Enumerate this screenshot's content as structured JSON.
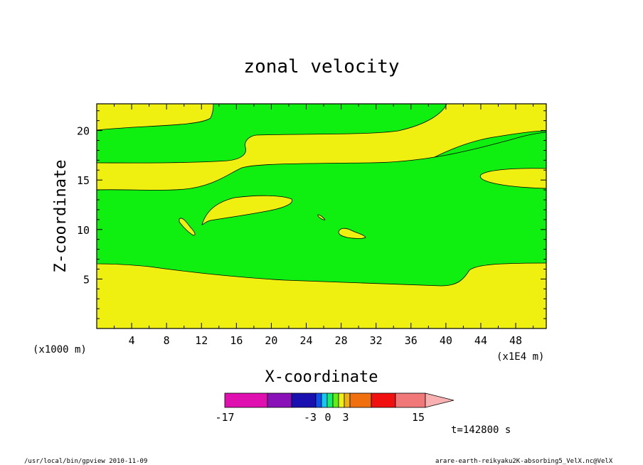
{
  "chart_data": {
    "type": "heatmap",
    "title": "zonal velocity",
    "xlabel": "X-coordinate",
    "ylabel": "Z-coordinate",
    "x_unit_left": "(x1000 m)",
    "x_unit_right": "(x1E4 m)",
    "xlim": [
      0,
      51.5
    ],
    "ylim": [
      0,
      22.7
    ],
    "x_ticks": [
      4,
      8,
      12,
      16,
      20,
      24,
      28,
      32,
      36,
      40,
      44,
      48
    ],
    "y_ticks": [
      5,
      10,
      15,
      20
    ],
    "time_label": "t=142800 s",
    "colorbar": {
      "tick_labels": [
        "-17",
        "-3",
        "0",
        "3",
        "15"
      ],
      "colors": [
        "#e010b0",
        "#8a10b8",
        "#1a10b0",
        "#1050f0",
        "#10c8f0",
        "#10f070",
        "#60f010",
        "#f0f010",
        "#f0b010",
        "#f07010",
        "#f01010",
        "#f07878",
        "#f8b0b0"
      ]
    },
    "regions": [
      {
        "level": "0 to 3",
        "color": "#f0f010",
        "role": "background"
      },
      {
        "level": "-3 to 0",
        "color": "#10f010",
        "role": "bands"
      }
    ]
  },
  "footer": {
    "left": "/usr/local/bin/gpview  2010-11-09",
    "right": "arare-earth-reikyaku2K-absorbing5_VelX.nc@VelX"
  }
}
